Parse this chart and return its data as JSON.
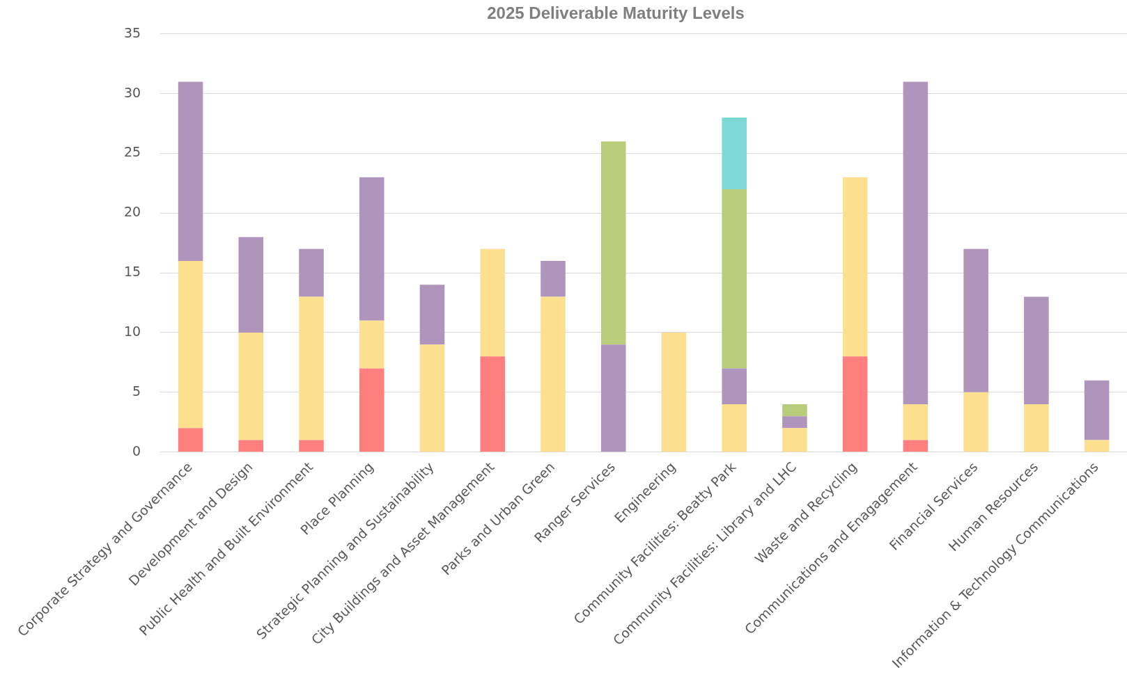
{
  "chart_data": {
    "type": "bar",
    "title": "2025 Deliverable Maturity Levels",
    "stacked": true,
    "grid": "y",
    "categories": [
      "Corporate Strategy and Governance",
      "Development and Design",
      "Public Health and Built Environment",
      "Place Planning",
      "Strategic Planning and Sustainability",
      "City Buildings and Asset Management",
      "Parks and Urban Green",
      "Ranger Services",
      "Engineering",
      "Community Facilities: Beatty Park",
      "Community Facilities: Library and LHC",
      "Waste and Recycling",
      "Communications and Enagagement",
      "Financial Services",
      "Human Resources",
      "Information & Technology Communications"
    ],
    "series": [
      {
        "color": "#ff7f7f",
        "values": [
          2,
          1,
          1,
          7,
          0,
          8,
          0,
          0,
          0,
          0,
          0,
          8,
          1,
          0,
          0,
          0
        ]
      },
      {
        "color": "#fde08f",
        "values": [
          14,
          9,
          12,
          4,
          9,
          9,
          13,
          0,
          10,
          4,
          2,
          15,
          3,
          5,
          4,
          1
        ]
      },
      {
        "color": "#af95bb",
        "values": [
          15,
          8,
          4,
          12,
          5,
          0,
          3,
          9,
          0,
          3,
          1,
          0,
          27,
          12,
          9,
          5
        ]
      },
      {
        "color": "#b8cc7c",
        "values": [
          0,
          0,
          0,
          0,
          0,
          0,
          0,
          17,
          0,
          15,
          1,
          0,
          0,
          0,
          0,
          0
        ]
      },
      {
        "color": "#7dd8d6",
        "values": [
          0,
          0,
          0,
          0,
          0,
          0,
          0,
          0,
          0,
          6,
          0,
          0,
          0,
          0,
          0,
          0
        ]
      }
    ],
    "ylim": [
      0,
      35
    ],
    "yticks": [
      0,
      5,
      10,
      15,
      20,
      25,
      30,
      35
    ],
    "legend": false
  }
}
